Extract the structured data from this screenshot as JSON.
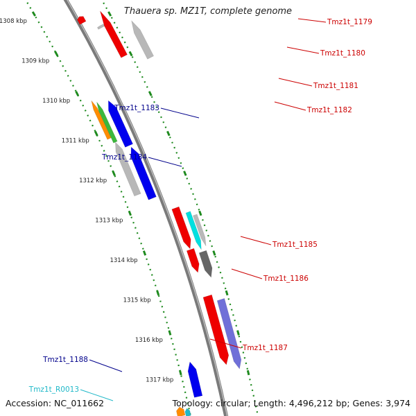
{
  "title": "Thauera sp. MZ1T, complete genome",
  "footer": {
    "accession": "Accession: NC_011662",
    "topology": "Topology: circular; Length: 4,496,212 bp; Genes: 3,974"
  },
  "colors": {
    "backbone": "#8a8a8a",
    "tick_dots": "#1e8a1e",
    "label_red": "#cc0000",
    "label_blue": "#00008b",
    "label_cyan": "#1fb8c8"
  },
  "scale_ticks": [
    {
      "label": "1308 kbp"
    },
    {
      "label": "1309 kbp"
    },
    {
      "label": "1310 kbp"
    },
    {
      "label": "1311 kbp"
    },
    {
      "label": "1312 kbp"
    },
    {
      "label": "1313 kbp"
    },
    {
      "label": "1314 kbp"
    },
    {
      "label": "1315 kbp"
    },
    {
      "label": "1316 kbp"
    },
    {
      "label": "1317 kbp"
    }
  ],
  "gene_labels": [
    {
      "text": "Tmz1t_1179",
      "color": "red"
    },
    {
      "text": "Tmz1t_1180",
      "color": "red"
    },
    {
      "text": "Tmz1t_1181",
      "color": "red"
    },
    {
      "text": "Tmz1t_1182",
      "color": "red"
    },
    {
      "text": "Tmz1t_1183",
      "color": "blue"
    },
    {
      "text": "Tmz1t_1184",
      "color": "blue"
    },
    {
      "text": "Tmz1t_1185",
      "color": "red"
    },
    {
      "text": "Tmz1t_1186",
      "color": "red"
    },
    {
      "text": "Tmz1t_1187",
      "color": "red"
    },
    {
      "text": "Tmz1t_1188",
      "color": "blue"
    },
    {
      "text": "Tmz1t_R0013",
      "color": "cyan"
    }
  ],
  "features": [
    {
      "strand": "+",
      "color": "#ee0000"
    },
    {
      "strand": "+",
      "color": "#b8b8b8"
    },
    {
      "strand": "+",
      "color": "#ee0000"
    },
    {
      "strand": "+",
      "color": "#b8b8b8"
    },
    {
      "strand": "-",
      "color": "#ff8c00"
    },
    {
      "strand": "-",
      "color": "#3cb83c"
    },
    {
      "strand": "-",
      "color": "#0000ee"
    },
    {
      "strand": "-",
      "color": "#b8b8b8"
    },
    {
      "strand": "-",
      "color": "#0000ee"
    },
    {
      "strand": "+",
      "color": "#ee0000"
    },
    {
      "strand": "+",
      "color": "#00e0e0"
    },
    {
      "strand": "+",
      "color": "#b8b8b8"
    },
    {
      "strand": "+",
      "color": "#ee0000"
    },
    {
      "strand": "+",
      "color": "#666666"
    },
    {
      "strand": "+",
      "color": "#ee0000"
    },
    {
      "strand": "+",
      "color": "#7070d8"
    },
    {
      "strand": "-",
      "color": "#0000ee"
    },
    {
      "strand": "-",
      "color": "#ff8c00"
    },
    {
      "strand": "-",
      "color": "#1fb8c8"
    }
  ]
}
